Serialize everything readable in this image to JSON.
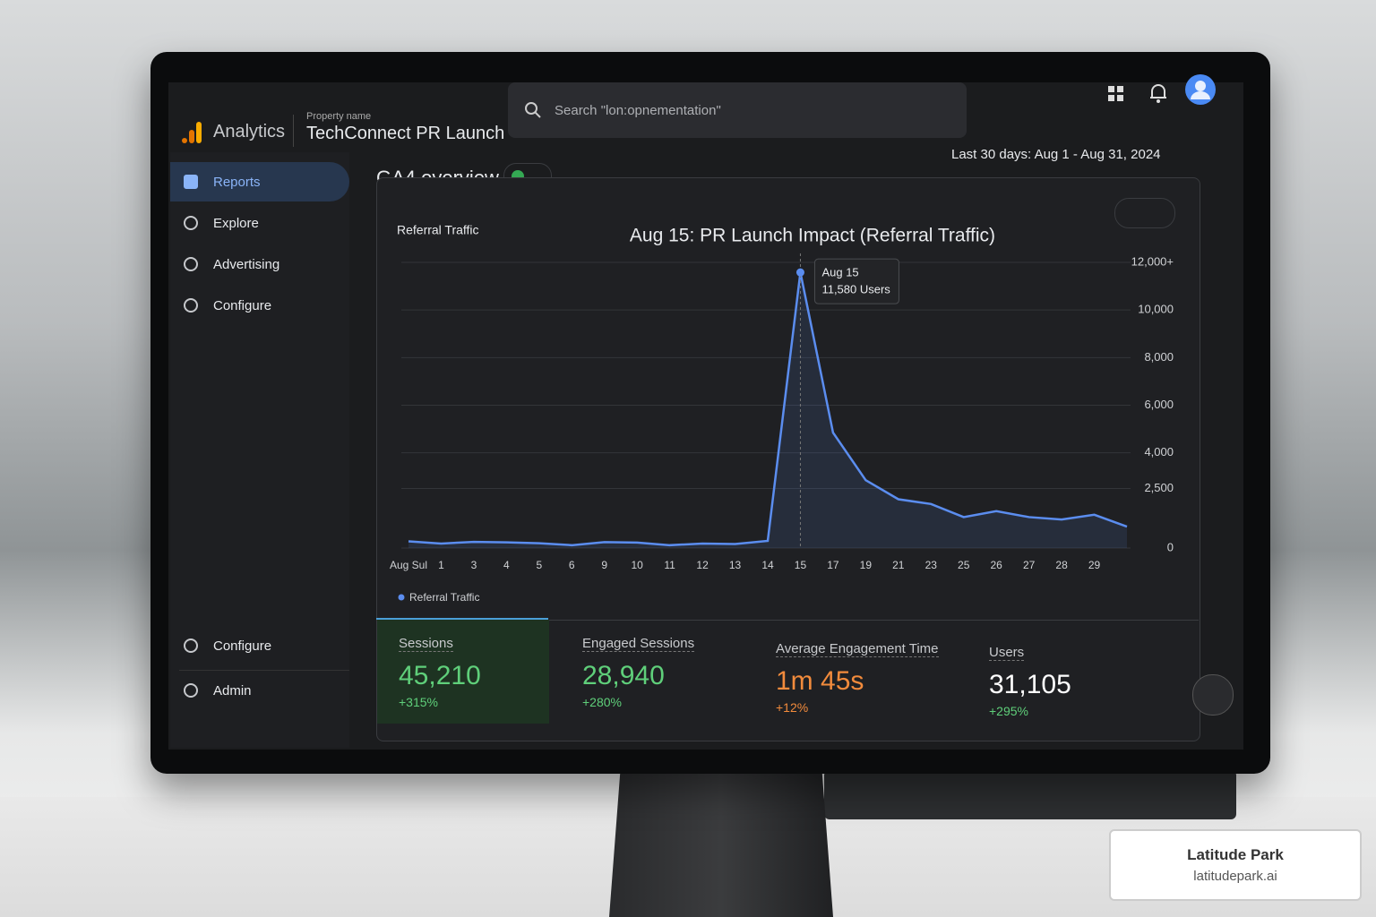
{
  "header": {
    "brand": "Analytics",
    "property_label": "Property name",
    "property": "TechConnect PR Launch",
    "search": "Search \"lon:opnementation\""
  },
  "sidebar": {
    "items": [
      "Reports",
      "Explore",
      "Advertising",
      "Configure"
    ],
    "bottom": [
      "Configure",
      "Admin"
    ]
  },
  "page": {
    "title": "GA4 overview",
    "date_range": "Last 30 days: Aug 1 - Aug 31, 2024"
  },
  "chart_data": {
    "type": "line",
    "label": "Referral Traffic",
    "title": "Aug 15: PR Launch Impact (Referral Traffic)",
    "categories": [
      "Aug Sul",
      "1",
      "3",
      "4",
      "5",
      "6",
      "9",
      "10",
      "11",
      "12",
      "13",
      "14",
      "15",
      "17",
      "19",
      "21",
      "23",
      "25",
      "26",
      "27",
      "28",
      "29",
      null
    ],
    "series": [
      {
        "name": "Referral Traffic",
        "color": "#5b8def",
        "values": [
          280,
          190,
          260,
          240,
          200,
          120,
          250,
          230,
          120,
          190,
          170,
          300,
          11580,
          4850,
          2850,
          2050,
          1850,
          1300,
          1550,
          1300,
          1200,
          1400,
          900
        ]
      }
    ],
    "ylim": [
      0,
      12000
    ],
    "yticks": [
      0,
      {
        "value": 2500,
        "label": "2,500"
      },
      {
        "value": 4000,
        "label": "4,000"
      },
      {
        "value": 6000,
        "label": "6,000"
      },
      {
        "value": 8000,
        "label": "8,000"
      },
      {
        "value": 10000,
        "label": "10,000"
      },
      {
        "value": 12000,
        "label": "12,000+"
      }
    ],
    "grid": true,
    "tooltip": {
      "title": "Aug 15",
      "text": "11,580 Users"
    }
  },
  "metrics": [
    {
      "label": "Sessions",
      "value": "45,210",
      "change": "+315%"
    },
    {
      "label": "Engaged Sessions",
      "value": "28,940",
      "change": "+280%"
    },
    {
      "label": "Average Engagement Time",
      "value": "1m 45s",
      "change": "+12%"
    },
    {
      "label": "Users",
      "value": "31,105",
      "change": "+295%"
    }
  ],
  "badge": {
    "name": "Latitude Park",
    "url": "latitudepark.ai"
  }
}
